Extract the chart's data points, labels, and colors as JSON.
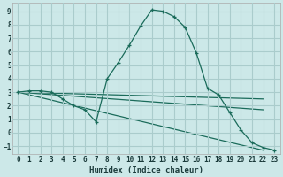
{
  "bg_color": "#cce8e8",
  "grid_color": "#aacccc",
  "line_color": "#1a6b5a",
  "xlabel": "Humidex (Indice chaleur)",
  "xlim": [
    -0.5,
    23.5
  ],
  "ylim": [
    -1.6,
    9.6
  ],
  "xticks": [
    0,
    1,
    2,
    3,
    4,
    5,
    6,
    7,
    8,
    9,
    10,
    11,
    12,
    13,
    14,
    15,
    16,
    17,
    18,
    19,
    20,
    21,
    22,
    23
  ],
  "yticks": [
    -1,
    0,
    1,
    2,
    3,
    4,
    5,
    6,
    7,
    8,
    9
  ],
  "curve1_x": [
    0,
    1,
    2,
    3,
    4,
    5,
    6,
    7,
    8,
    9,
    10,
    11,
    12,
    13,
    14,
    15,
    16,
    17,
    18,
    19,
    20,
    21,
    22,
    23
  ],
  "curve1_y": [
    3.0,
    3.1,
    3.1,
    3.0,
    2.5,
    2.0,
    1.7,
    0.8,
    4.0,
    5.2,
    6.5,
    7.9,
    9.1,
    9.0,
    8.6,
    7.8,
    5.9,
    3.3,
    2.8,
    1.5,
    0.2,
    -0.75,
    -1.1,
    -1.3
  ],
  "line2_x": [
    0,
    22
  ],
  "line2_y": [
    3.0,
    -1.3
  ],
  "line3_x": [
    0,
    22
  ],
  "line3_y": [
    3.0,
    1.7
  ],
  "line4_x": [
    0,
    22
  ],
  "line4_y": [
    3.0,
    2.5
  ],
  "marker": "+"
}
